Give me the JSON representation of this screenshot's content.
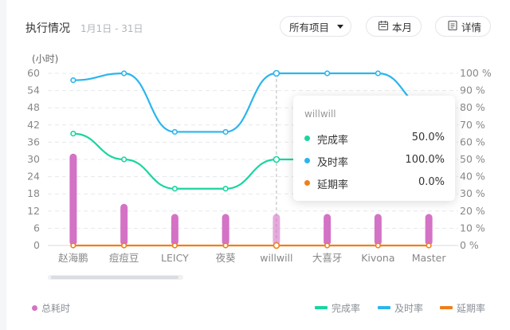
{
  "header": {
    "title": "执行情况",
    "date_range": "1月1日 - 31日",
    "project_select": "所有项目",
    "month_button": "本月",
    "detail_button": "详情"
  },
  "tooltip": {
    "title": "willwill",
    "rows": [
      {
        "name": "完成率",
        "value": "50.0%",
        "color": "#1ad5a0"
      },
      {
        "name": "及时率",
        "value": "100.0%",
        "color": "#2bb5ef"
      },
      {
        "name": "延期率",
        "value": "0.0%",
        "color": "#ef7f1a"
      }
    ]
  },
  "legend": {
    "bar_label": "总耗时",
    "lines": [
      "完成率",
      "及时率",
      "延期率"
    ]
  },
  "colors": {
    "bar": "#d472c6",
    "completion": "#1ad5a0",
    "timely": "#2bb5ef",
    "delay": "#ef7f1a"
  },
  "chart_data": {
    "type": "bar",
    "categories": [
      "赵海鹏",
      "痘痘豆",
      "LEICY",
      "夜葵",
      "willwill",
      "大喜牙",
      "Kivona",
      "Master"
    ],
    "y_left_label": "(小时)",
    "y_left_ticks": [
      "0",
      "6",
      "12",
      "18",
      "24",
      "30",
      "36",
      "42",
      "48",
      "54",
      "60"
    ],
    "y_left_range": [
      0,
      60
    ],
    "y_right_ticks": [
      "0 %",
      "10 %",
      "20 %",
      "30 %",
      "40 %",
      "50 %",
      "60 %",
      "70 %",
      "80 %",
      "90 %",
      "100 %"
    ],
    "y_right_range": [
      0,
      100
    ],
    "series": [
      {
        "name": "总耗时",
        "type": "bar",
        "axis": "left",
        "values": [
          32,
          14.5,
          11,
          11,
          11,
          11,
          11,
          11
        ]
      },
      {
        "name": "完成率",
        "type": "line",
        "axis": "right",
        "values": [
          65,
          50,
          33,
          33,
          50,
          50,
          50,
          50
        ]
      },
      {
        "name": "及时率",
        "type": "line",
        "axis": "right",
        "values": [
          96,
          100,
          66,
          66,
          100,
          100,
          100,
          80
        ]
      },
      {
        "name": "延期率",
        "type": "line",
        "axis": "right",
        "values": [
          0,
          0,
          0,
          0,
          0,
          0,
          0,
          0
        ]
      }
    ],
    "highlight_category": "willwill",
    "grid": true,
    "legend_position": "bottom"
  }
}
